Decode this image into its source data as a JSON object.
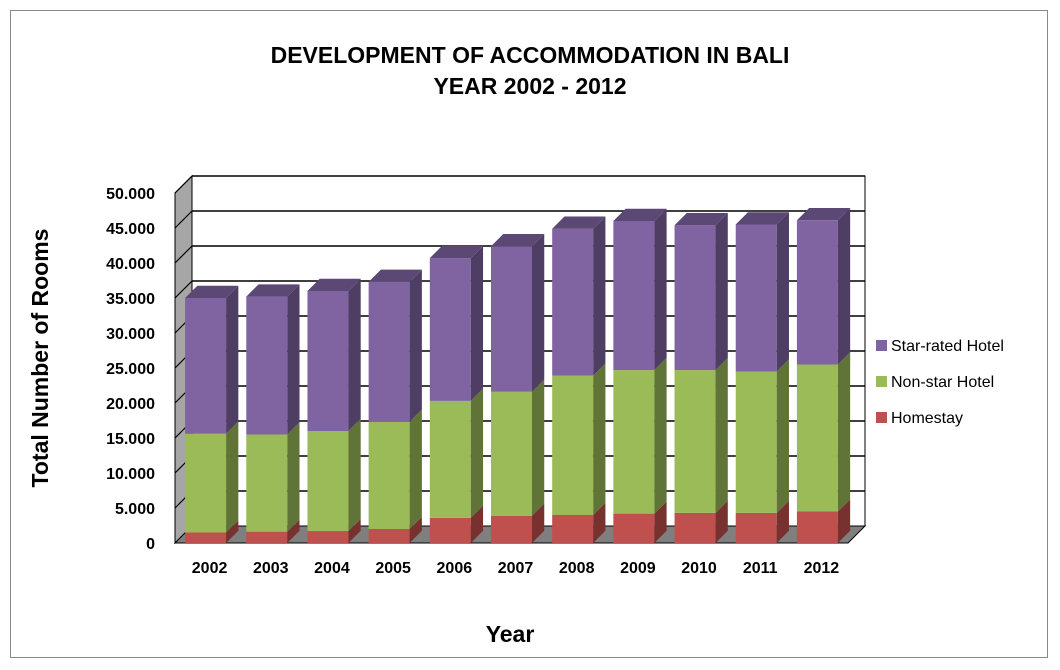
{
  "chart_data": {
    "type": "bar",
    "stacked": true,
    "title": [
      "DEVELOPMENT OF ACCOMMODATION  IN BALI",
      "YEAR 2002 - 2012"
    ],
    "xlabel": "Year",
    "ylabel": "Total Number of Rooms",
    "categories": [
      "2002",
      "2003",
      "2004",
      "2005",
      "2006",
      "2007",
      "2008",
      "2009",
      "2010",
      "2011",
      "2012"
    ],
    "ylim": [
      0,
      50000
    ],
    "yticks": [
      "0",
      "5.000",
      "10.000",
      "15.000",
      "20.000",
      "25.000",
      "30.000",
      "35.000",
      "40.000",
      "45.000",
      "50.000"
    ],
    "grid": true,
    "legend_position": "right",
    "series": [
      {
        "name": "Homestay",
        "color": "#c0504d",
        "values": [
          1500,
          1600,
          1700,
          2000,
          3600,
          3900,
          4000,
          4200,
          4300,
          4300,
          4500
        ]
      },
      {
        "name": "Non-star Hotel",
        "color": "#9bbb59",
        "values": [
          14100,
          13900,
          14300,
          15300,
          16700,
          17700,
          19900,
          20500,
          20400,
          20200,
          21000
        ]
      },
      {
        "name": "Star-rated Hotel",
        "color": "#8064a2",
        "values": [
          19400,
          19700,
          20000,
          20000,
          20400,
          20800,
          21000,
          21300,
          20700,
          21000,
          20600
        ]
      }
    ]
  }
}
